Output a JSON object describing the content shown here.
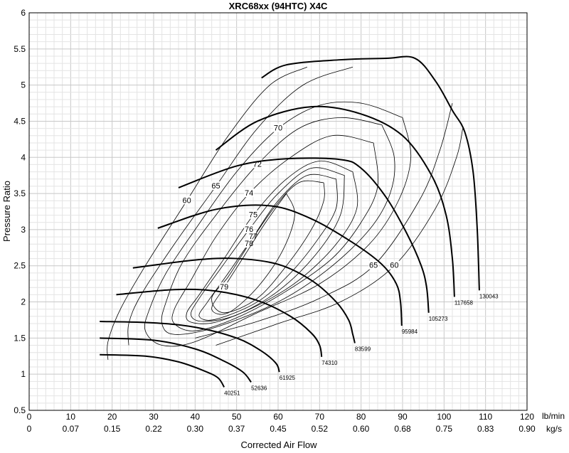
{
  "chart_data": {
    "type": "line",
    "title": "XRC68xx (94HTC) X4C",
    "xlabel": "Corrected Air Flow",
    "ylabel": "Pressure Ratio",
    "xlim": [
      0,
      120
    ],
    "ylim": [
      0.5,
      6
    ],
    "grid": true,
    "x_unit_primary": "lb/min",
    "x_unit_secondary": "kg/s",
    "x_ticks": [
      "0",
      "10",
      "20",
      "30",
      "40",
      "50",
      "60",
      "70",
      "80",
      "90",
      "100",
      "110",
      "120"
    ],
    "x_ticks_secondary": [
      "0",
      "0.07",
      "0.15",
      "0.22",
      "0.30",
      "0.37",
      "0.45",
      "0.52",
      "0.60",
      "0.68",
      "0.75",
      "0.83",
      "0.90"
    ],
    "y_ticks": [
      "0.5",
      "1",
      "1.5",
      "2",
      "2.5",
      "3",
      "3.5",
      "4",
      "4.5",
      "5",
      "5.5",
      "6"
    ],
    "speed_lines": [
      {
        "rpm": "40251",
        "points": [
          [
            17,
            1.27
          ],
          [
            28,
            1.25
          ],
          [
            36,
            1.17
          ],
          [
            42,
            1.05
          ],
          [
            45.5,
            0.95
          ],
          [
            47,
            0.82
          ]
        ]
      },
      {
        "rpm": "52636",
        "points": [
          [
            17,
            1.5
          ],
          [
            30,
            1.47
          ],
          [
            40,
            1.35
          ],
          [
            47,
            1.18
          ],
          [
            51.5,
            1.03
          ],
          [
            53.5,
            0.89
          ]
        ]
      },
      {
        "rpm": "61925",
        "points": [
          [
            17,
            1.73
          ],
          [
            30,
            1.71
          ],
          [
            40,
            1.65
          ],
          [
            50,
            1.5
          ],
          [
            56,
            1.32
          ],
          [
            59.5,
            1.15
          ],
          [
            60.3,
            1.03
          ]
        ]
      },
      {
        "rpm": "74310",
        "points": [
          [
            21,
            2.1
          ],
          [
            35,
            2.17
          ],
          [
            45,
            2.15
          ],
          [
            55,
            2.02
          ],
          [
            63,
            1.8
          ],
          [
            68,
            1.57
          ],
          [
            70,
            1.4
          ],
          [
            70.5,
            1.24
          ]
        ]
      },
      {
        "rpm": "83599",
        "points": [
          [
            25,
            2.47
          ],
          [
            40,
            2.58
          ],
          [
            50,
            2.6
          ],
          [
            60,
            2.52
          ],
          [
            68,
            2.3
          ],
          [
            74,
            2.0
          ],
          [
            77,
            1.75
          ],
          [
            78,
            1.55
          ],
          [
            78.5,
            1.43
          ]
        ]
      },
      {
        "rpm": "95984",
        "points": [
          [
            31,
            3.02
          ],
          [
            45,
            3.28
          ],
          [
            58,
            3.33
          ],
          [
            68,
            3.15
          ],
          [
            78,
            2.82
          ],
          [
            85,
            2.52
          ],
          [
            88.5,
            2.25
          ],
          [
            89.5,
            2.0
          ],
          [
            89.8,
            1.67
          ]
        ]
      },
      {
        "rpm": "105273",
        "points": [
          [
            36,
            3.58
          ],
          [
            50,
            3.88
          ],
          [
            62,
            3.98
          ],
          [
            75,
            3.97
          ],
          [
            80,
            3.85
          ],
          [
            86,
            3.45
          ],
          [
            91,
            2.95
          ],
          [
            94.5,
            2.5
          ],
          [
            95.8,
            2.2
          ],
          [
            96.3,
            1.85
          ]
        ]
      },
      {
        "rpm": "117658",
        "points": [
          [
            45,
            4.1
          ],
          [
            55,
            4.5
          ],
          [
            68,
            4.7
          ],
          [
            80,
            4.6
          ],
          [
            90,
            4.3
          ],
          [
            97,
            3.75
          ],
          [
            100.5,
            3.2
          ],
          [
            102,
            2.6
          ],
          [
            102.5,
            2.07
          ]
        ]
      },
      {
        "rpm": "130043",
        "points": [
          [
            56,
            5.1
          ],
          [
            62,
            5.28
          ],
          [
            75,
            5.35
          ],
          [
            86,
            5.37
          ],
          [
            93,
            5.37
          ],
          [
            98,
            5.05
          ],
          [
            102,
            4.65
          ],
          [
            105,
            4.35
          ],
          [
            107,
            3.8
          ],
          [
            108,
            3.0
          ],
          [
            108.5,
            2.16
          ]
        ]
      }
    ],
    "efficiency_islands": [
      {
        "level": "60",
        "points": [
          [
            67,
            5.25
          ],
          [
            58,
            5.0
          ],
          [
            48,
            4.3
          ],
          [
            38,
            3.4
          ],
          [
            28,
            2.5
          ],
          [
            22,
            1.9
          ],
          [
            19,
            1.45
          ],
          [
            19,
            1.2
          ]
        ]
      },
      {
        "level": "60",
        "points": [
          [
            45,
            1.4
          ],
          [
            60,
            1.7
          ],
          [
            75,
            2.0
          ],
          [
            88,
            2.5
          ],
          [
            98,
            3.3
          ],
          [
            103,
            4.0
          ],
          [
            104.5,
            4.4
          ]
        ]
      },
      {
        "level": "65",
        "points": [
          [
            78,
            5.25
          ],
          [
            66,
            5.0
          ],
          [
            55,
            4.4
          ],
          [
            45,
            3.6
          ],
          [
            35,
            2.8
          ],
          [
            27,
            2.1
          ],
          [
            24,
            1.7
          ],
          [
            24,
            1.4
          ]
        ]
      },
      {
        "level": "65",
        "points": [
          [
            40,
            1.5
          ],
          [
            55,
            1.73
          ],
          [
            70,
            2.05
          ],
          [
            83,
            2.5
          ],
          [
            94,
            3.4
          ],
          [
            99,
            4.1
          ],
          [
            102,
            4.75
          ]
        ]
      },
      {
        "level": "70",
        "points": [
          [
            90,
            4.55
          ],
          [
            80,
            4.75
          ],
          [
            70,
            4.72
          ],
          [
            60,
            4.4
          ],
          [
            50,
            3.8
          ],
          [
            40,
            3.0
          ],
          [
            33,
            2.4
          ],
          [
            29,
            1.9
          ],
          [
            28,
            1.6
          ],
          [
            32,
            1.4
          ],
          [
            40,
            1.45
          ],
          [
            55,
            1.85
          ],
          [
            70,
            2.25
          ],
          [
            82,
            2.8
          ],
          [
            89,
            3.4
          ],
          [
            92,
            4.0
          ],
          [
            90,
            4.55
          ]
        ]
      },
      {
        "level": "72",
        "points": [
          [
            85,
            4.45
          ],
          [
            75,
            4.55
          ],
          [
            65,
            4.4
          ],
          [
            55,
            3.9
          ],
          [
            45,
            3.2
          ],
          [
            37,
            2.55
          ],
          [
            33,
            2.0
          ],
          [
            32,
            1.7
          ],
          [
            35,
            1.55
          ],
          [
            45,
            1.65
          ],
          [
            60,
            2.0
          ],
          [
            72,
            2.45
          ],
          [
            82,
            3.0
          ],
          [
            87,
            3.5
          ],
          [
            88,
            4.0
          ],
          [
            85,
            4.45
          ]
        ]
      },
      {
        "level": "74",
        "points": [
          [
            83,
            4.2
          ],
          [
            73,
            4.3
          ],
          [
            63,
            4.0
          ],
          [
            53,
            3.5
          ],
          [
            45,
            2.9
          ],
          [
            39,
            2.3
          ],
          [
            35,
            1.9
          ],
          [
            35,
            1.7
          ],
          [
            40,
            1.6
          ],
          [
            50,
            1.78
          ],
          [
            62,
            2.15
          ],
          [
            73,
            2.6
          ],
          [
            80,
            3.1
          ],
          [
            84,
            3.6
          ],
          [
            83,
            4.2
          ]
        ]
      },
      {
        "level": "75",
        "points": [
          [
            78,
            3.8
          ],
          [
            70,
            3.95
          ],
          [
            62,
            3.7
          ],
          [
            54,
            3.2
          ],
          [
            47,
            2.6
          ],
          [
            41,
            2.1
          ],
          [
            38,
            1.85
          ],
          [
            39,
            1.72
          ],
          [
            45,
            1.72
          ],
          [
            55,
            1.95
          ],
          [
            65,
            2.3
          ],
          [
            74,
            2.8
          ],
          [
            79,
            3.3
          ],
          [
            78,
            3.8
          ]
        ]
      },
      {
        "level": "76",
        "points": [
          [
            76,
            3.75
          ],
          [
            68,
            3.85
          ],
          [
            60,
            3.5
          ],
          [
            53,
            3.0
          ],
          [
            46,
            2.45
          ],
          [
            41,
            2.05
          ],
          [
            39,
            1.82
          ],
          [
            42,
            1.73
          ],
          [
            50,
            1.82
          ],
          [
            60,
            2.15
          ],
          [
            69,
            2.65
          ],
          [
            75,
            3.2
          ],
          [
            76,
            3.75
          ]
        ]
      },
      {
        "level": "77",
        "points": [
          [
            74,
            3.7
          ],
          [
            67,
            3.75
          ],
          [
            60,
            3.4
          ],
          [
            54,
            2.9
          ],
          [
            48,
            2.4
          ],
          [
            43,
            2.0
          ],
          [
            41,
            1.8
          ],
          [
            45,
            1.76
          ],
          [
            55,
            2.0
          ],
          [
            63,
            2.4
          ],
          [
            70,
            2.9
          ],
          [
            74,
            3.3
          ],
          [
            74,
            3.7
          ]
        ]
      },
      {
        "level": "78",
        "points": [
          [
            71,
            3.65
          ],
          [
            65,
            3.65
          ],
          [
            59,
            3.3
          ],
          [
            53,
            2.8
          ],
          [
            48,
            2.35
          ],
          [
            44,
            2.05
          ],
          [
            47,
            1.85
          ],
          [
            55,
            2.05
          ],
          [
            62,
            2.5
          ],
          [
            68,
            3.0
          ],
          [
            71,
            3.4
          ],
          [
            71,
            3.65
          ]
        ]
      },
      {
        "level": "79",
        "points": [
          [
            62,
            3.5
          ],
          [
            57,
            3.1
          ],
          [
            52,
            2.65
          ],
          [
            47,
            2.2
          ],
          [
            44,
            1.9
          ],
          [
            48,
            1.85
          ],
          [
            55,
            2.2
          ],
          [
            61,
            2.7
          ],
          [
            64,
            3.2
          ],
          [
            62,
            3.5
          ]
        ]
      }
    ]
  }
}
